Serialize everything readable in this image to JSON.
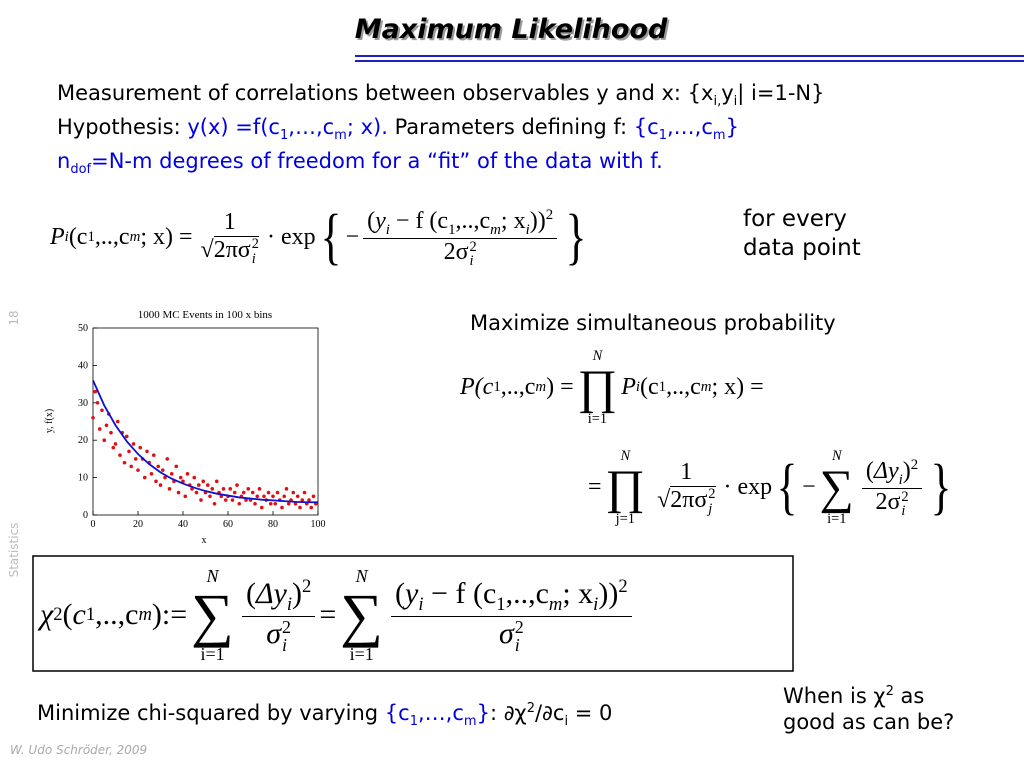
{
  "slide": {
    "title": "Maximum Likelihood",
    "line1": [
      "Measurement of correlations between observables y and x: {x",
      "i,",
      "y",
      "i",
      "| i=1-N}"
    ],
    "line2": [
      "Hypothesis: ",
      "y(x) =f(c",
      "1",
      ",…,c",
      "m",
      "; x).",
      " Parameters defining f:  ",
      "{c",
      "1",
      ",…,c",
      "m",
      "}"
    ],
    "line3": [
      "n",
      "dof",
      "=N-m degrees of freedom for a “fit” of the data with f."
    ],
    "eq1": [
      "P",
      "i",
      "(c",
      "1",
      ",..,c",
      "m",
      "; x) =",
      "1",
      "√",
      "2πσ",
      "i",
      "2",
      "· exp",
      "{",
      "−",
      "(",
      "y",
      "i",
      " − f (c",
      "1",
      ",..,c",
      "m",
      "; x",
      "i",
      ")",
      ")",
      "2",
      "2σ",
      "i",
      "2",
      "}"
    ],
    "note1": [
      "for every",
      "data point"
    ],
    "maximize": "Maximize simultaneous probability",
    "eq2": [
      "P(c",
      "1",
      ",..,c",
      "m",
      ") =",
      "N",
      "∏",
      "i=1",
      "P",
      "i",
      "(c",
      "1",
      ",..,c",
      "m",
      "; x) ="
    ],
    "eq3": [
      "=",
      "N",
      "∏",
      "j=1",
      "1",
      "√",
      "2πσ",
      "j",
      "2",
      "· exp",
      "{",
      "−",
      "N",
      "∑",
      "i=1",
      "(",
      "Δy",
      "i",
      ")",
      "2",
      "2σ",
      "i",
      "2",
      "}"
    ],
    "eq4": [
      "χ",
      "2",
      "(",
      "c",
      "1",
      ",..,c",
      "m",
      ")",
      ":=",
      "N",
      "∑",
      "i=1",
      "(",
      "Δy",
      "i",
      ")",
      "2",
      "σ",
      "i",
      "2",
      "=",
      "N",
      "∑",
      "i=1",
      "(",
      "y",
      "i",
      " − f (c",
      "1",
      ",..,c",
      "m",
      "; x",
      "i",
      ")",
      ")",
      "2",
      "σ",
      "i",
      "2"
    ],
    "minimize": [
      "Minimize chi-squared by varying ",
      "{c",
      "1",
      ",…,c",
      "m",
      "}",
      ": ∂χ",
      "2",
      "/∂c",
      "i",
      " = 0"
    ],
    "question": [
      "When is χ",
      "2",
      " as",
      "good as can be?"
    ],
    "footer": "W. Udo Schröder, 2009",
    "side_label": "Statistics",
    "page_number": "18"
  },
  "chart_data": {
    "type": "scatter",
    "title": "1000 MC Events in 100 x bins",
    "xlabel": "x",
    "ylabel": "y, f(x)",
    "xlim": [
      0,
      100
    ],
    "ylim": [
      0,
      50
    ],
    "xticks": [
      0,
      20,
      40,
      60,
      80,
      100
    ],
    "yticks": [
      0,
      10,
      20,
      30,
      40,
      50
    ],
    "series": [
      {
        "type": "scatter",
        "color": "#e01010",
        "x": [
          0,
          1,
          2,
          3,
          4,
          5,
          6,
          7,
          8,
          9,
          10,
          11,
          12,
          13,
          14,
          15,
          16,
          17,
          18,
          19,
          20,
          21,
          22,
          23,
          24,
          25,
          26,
          27,
          28,
          29,
          30,
          31,
          32,
          33,
          34,
          35,
          36,
          37,
          38,
          39,
          40,
          41,
          42,
          43,
          44,
          45,
          46,
          47,
          48,
          49,
          50,
          51,
          52,
          53,
          54,
          55,
          56,
          57,
          58,
          59,
          60,
          61,
          62,
          63,
          64,
          65,
          66,
          67,
          68,
          69,
          70,
          71,
          72,
          73,
          74,
          75,
          76,
          77,
          78,
          79,
          80,
          81,
          82,
          83,
          84,
          85,
          86,
          87,
          88,
          89,
          90,
          91,
          92,
          93,
          94,
          95,
          96,
          97,
          98,
          99
        ],
        "values": [
          26,
          33,
          30,
          23,
          28,
          20,
          24,
          27,
          22,
          18,
          19,
          25,
          16,
          22,
          14,
          21,
          17,
          13,
          19,
          15,
          12,
          18,
          15,
          10,
          17,
          14,
          11,
          16,
          9,
          13,
          8,
          12,
          10,
          15,
          7,
          11,
          9,
          13,
          6,
          10,
          9,
          5,
          11,
          8,
          7,
          10,
          6,
          8,
          4,
          9,
          6,
          8,
          5,
          7,
          3,
          9,
          6,
          5,
          7,
          4,
          5,
          7,
          4,
          6,
          8,
          3,
          5,
          6,
          4,
          7,
          4,
          6,
          3,
          5,
          7,
          2,
          5,
          4,
          6,
          3,
          5,
          3,
          6,
          4,
          2,
          5,
          7,
          3,
          4,
          6,
          3,
          5,
          2,
          4,
          6,
          3,
          4,
          2,
          5,
          3
        ]
      },
      {
        "type": "line",
        "color": "#1010d0",
        "x": [
          0,
          5,
          10,
          15,
          20,
          25,
          30,
          35,
          40,
          45,
          50,
          55,
          60,
          65,
          70,
          75,
          80,
          85,
          90,
          95,
          100
        ],
        "values": [
          36,
          29.3,
          24,
          19.7,
          16.3,
          13.6,
          11.4,
          9.7,
          8.4,
          7.3,
          6.4,
          5.7,
          5.2,
          4.7,
          4.4,
          4.1,
          3.9,
          3.7,
          3.5,
          3.4,
          3.4
        ]
      }
    ]
  }
}
